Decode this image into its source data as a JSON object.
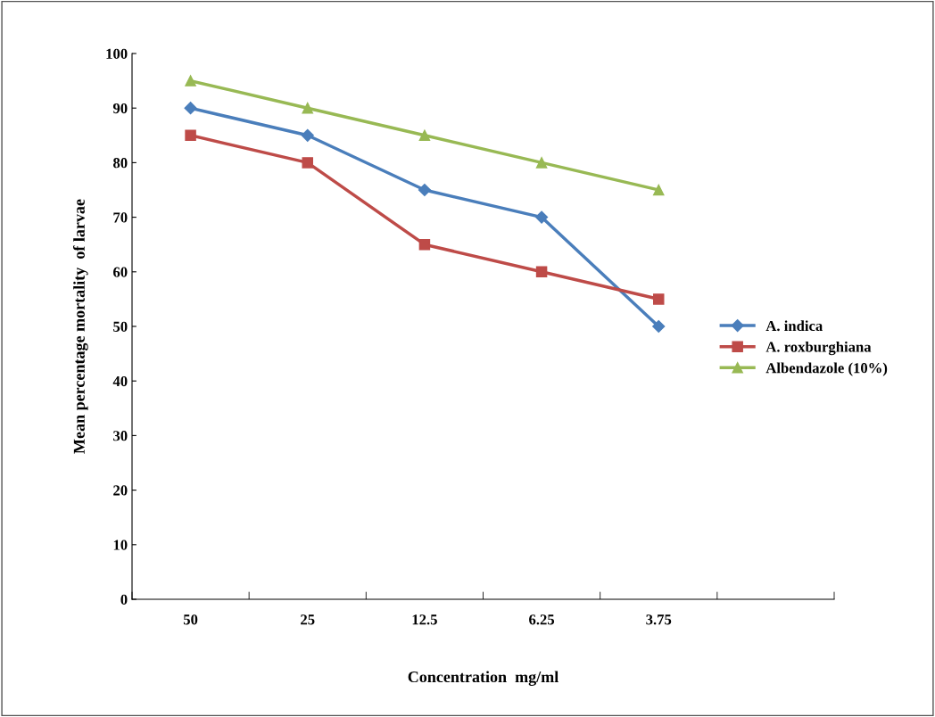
{
  "chart_data": {
    "type": "line",
    "xlabel": "Concentration  mg/ml",
    "ylabel": "Mean percentage mortality  of larvae",
    "categories": [
      "50",
      "25",
      "12.5",
      "6.25",
      "3.75",
      null
    ],
    "series": [
      {
        "name": "A. indica",
        "color": "#4a7ebb",
        "marker": "diamond",
        "values": [
          90,
          85,
          75,
          70,
          50,
          null
        ]
      },
      {
        "name": "A. roxburghiana",
        "color": "#be4b48",
        "marker": "square",
        "values": [
          85,
          80,
          65,
          60,
          55,
          null
        ]
      },
      {
        "name": "Albendazole (10%)",
        "color": "#98b954",
        "marker": "triangle",
        "values": [
          95,
          90,
          85,
          80,
          75,
          null
        ]
      }
    ],
    "ylim": [
      0,
      100
    ],
    "yticks": [
      0,
      10,
      20,
      30,
      40,
      50,
      60,
      70,
      80,
      90,
      100
    ],
    "grid": false,
    "legend": "right",
    "line_style": "solid"
  }
}
